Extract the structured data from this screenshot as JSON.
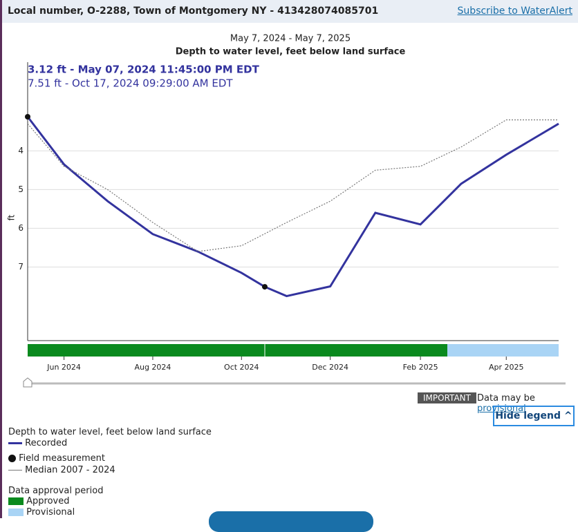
{
  "header": {
    "title": "Local number, O-2288, Town of Montgomery NY - 413428074085701",
    "link": "Subscribe to WaterAlert"
  },
  "chart_data": {
    "type": "line",
    "subtitle": "May 7, 2024 - May 7, 2025",
    "title": "Depth to water level, feet below land surface",
    "tooltips": [
      "3.12 ft - May 07, 2024 11:45:00 PM EDT",
      "7.51 ft - Oct 17, 2024 09:29:00 AM EDT"
    ],
    "y_label": "ft",
    "xlim": [
      "2024-05-07",
      "2025-05-07"
    ],
    "xticks": [
      {
        "value": "2024-06",
        "label": "Jun 2024"
      },
      {
        "value": "2024-08",
        "label": "Aug 2024"
      },
      {
        "value": "2024-10",
        "label": "Oct 2024"
      },
      {
        "value": "2024-12",
        "label": "Dec 2024"
      },
      {
        "value": "2025-02",
        "label": "Feb 2025"
      },
      {
        "value": "2025-04",
        "label": "Apr 2025"
      }
    ],
    "ylim": [
      8.9,
      1.8
    ],
    "yticks": [
      4,
      5,
      6,
      7
    ],
    "grid": true,
    "series": [
      {
        "name": "Recorded",
        "color": "#33339e",
        "width": 3,
        "x": [
          "2024-05-07",
          "2024-06",
          "2024-07",
          "2024-08",
          "2024-09",
          "2024-10",
          "2024-10-17",
          "2024-11",
          "2024-12",
          "2025-01",
          "2025-02",
          "2025-03",
          "2025-04",
          "2025-05-07"
        ],
        "values": [
          3.12,
          4.35,
          5.3,
          6.15,
          6.6,
          7.15,
          7.51,
          7.75,
          7.5,
          5.6,
          5.9,
          4.85,
          4.1,
          3.3
        ]
      },
      {
        "name": "Median 2007 - 2024",
        "color": "#777777",
        "width": 1.2,
        "dashed": true,
        "x": [
          "2024-05-07",
          "2024-06",
          "2024-07",
          "2024-08",
          "2024-09",
          "2024-10",
          "2024-11",
          "2024-12",
          "2025-01",
          "2025-02",
          "2025-03",
          "2025-04",
          "2025-05-07"
        ],
        "values": [
          3.3,
          4.4,
          5.0,
          5.85,
          6.6,
          6.45,
          5.85,
          5.3,
          4.5,
          4.4,
          3.9,
          3.2,
          3.2
        ]
      }
    ],
    "field_measurements": {
      "name": "Field measurement",
      "color": "#111111",
      "x": [
        "2024-05-07",
        "2024-10-17"
      ],
      "values": [
        3.12,
        7.51
      ]
    }
  },
  "notice": {
    "badge": "IMPORTANT",
    "text": "Data may be",
    "link": "provisional"
  },
  "legend_button": "Hide legend",
  "legend": {
    "approval_title": "Data approval period",
    "approved": "Approved",
    "provisional": "Provisional"
  }
}
